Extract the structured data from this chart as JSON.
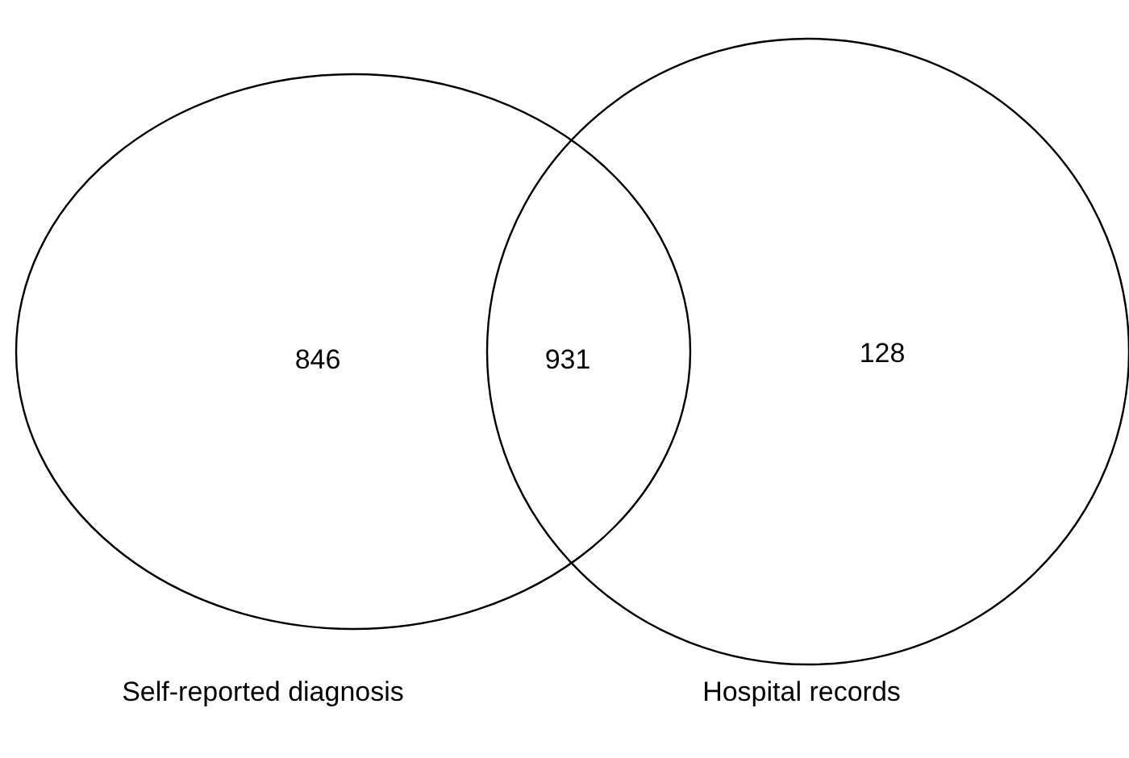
{
  "chart_data": {
    "type": "other",
    "categories": [
      "Self-reported diagnosis",
      null,
      "Hospital records"
    ],
    "values": [
      846,
      931,
      128
    ],
    "data_labels": true
  }
}
